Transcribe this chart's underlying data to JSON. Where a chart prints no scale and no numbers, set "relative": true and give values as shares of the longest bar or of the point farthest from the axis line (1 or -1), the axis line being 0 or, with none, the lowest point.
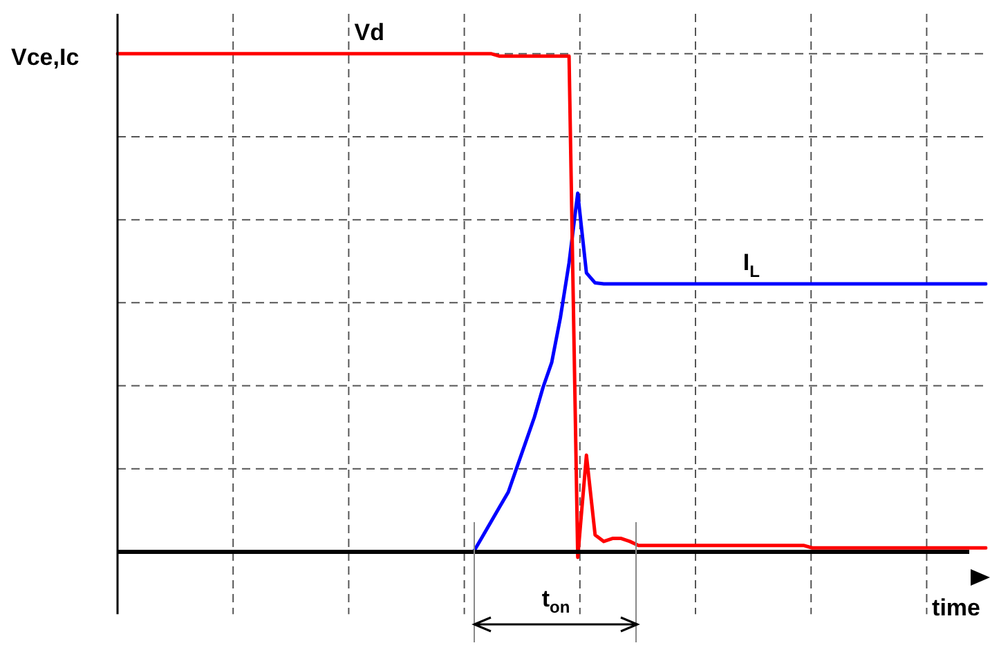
{
  "chart_data": {
    "type": "line",
    "relative": true,
    "ylabel": "Vce,Ic",
    "xlabel": "time",
    "grid": true,
    "line_style": "solid",
    "annotations": [
      "t$_{on}$"
    ],
    "categories": [
      null,
      null,
      null,
      null,
      null,
      null,
      null,
      null,
      null,
      null,
      null,
      null,
      null,
      null,
      null,
      null,
      null,
      null,
      null,
      null,
      null,
      null,
      null,
      null,
      null,
      null,
      null,
      null,
      null,
      null,
      null,
      null,
      null,
      null,
      null,
      null,
      null,
      null,
      null,
      null,
      null,
      null,
      null,
      null,
      null,
      null,
      null,
      null,
      null,
      null,
      null,
      null,
      null,
      null,
      null,
      null,
      null,
      null,
      null,
      null,
      null,
      null,
      null,
      null,
      null,
      null,
      null,
      null,
      null,
      null,
      null,
      null,
      null,
      null,
      null,
      null,
      null,
      null,
      null,
      null,
      null,
      null,
      null,
      null,
      null,
      null,
      null,
      null,
      null,
      null,
      null,
      null,
      null,
      null,
      null,
      null,
      null,
      null,
      null,
      null,
      null
    ],
    "series": [
      {
        "name": "Vd",
        "color": "#ff0000",
        "values": [
          1,
          1,
          1,
          1,
          1,
          1,
          1,
          1,
          1,
          1,
          1,
          1,
          1,
          1,
          1,
          1,
          1,
          1,
          1,
          1,
          1,
          1,
          1,
          1,
          1,
          1,
          1,
          1,
          1,
          1,
          1,
          1,
          1,
          1,
          1,
          1,
          1,
          1,
          1,
          1,
          1,
          1,
          1,
          1,
          0.995,
          0.995,
          0.995,
          0.995,
          0.995,
          0.995,
          0.995,
          0.995,
          0.995,
          -0.011,
          0.194,
          0.034,
          0.021,
          0.027,
          0.027,
          0.021,
          0.013,
          0.013,
          0.013,
          0.013,
          0.013,
          0.013,
          0.013,
          0.013,
          0.013,
          0.013,
          0.013,
          0.013,
          0.013,
          0.013,
          0.013,
          0.013,
          0.013,
          0.013,
          0.013,
          0.013,
          0.008,
          0.008,
          0.008,
          0.008,
          0.008,
          0.008,
          0.008,
          0.008,
          0.008,
          0.008,
          0.008,
          0.008,
          0.008,
          0.008,
          0.008,
          0.008,
          0.008,
          0.008,
          0.008,
          0.008,
          0.008
        ]
      },
      {
        "name": "I$_{L}$",
        "color": "#0000ff",
        "values": [
          null,
          null,
          null,
          null,
          null,
          null,
          null,
          null,
          null,
          null,
          null,
          null,
          null,
          null,
          null,
          null,
          null,
          null,
          null,
          null,
          null,
          null,
          null,
          null,
          null,
          null,
          null,
          null,
          null,
          null,
          null,
          null,
          null,
          null,
          null,
          null,
          null,
          null,
          null,
          null,
          null,
          0,
          0.03,
          0.06,
          0.09,
          0.12,
          0.17,
          0.22,
          0.27,
          0.33,
          0.38,
          0.47,
          0.58,
          0.72,
          0.56,
          0.54,
          0.538,
          0.538,
          0.538,
          0.538,
          0.538,
          0.538,
          0.538,
          0.538,
          0.538,
          0.538,
          0.538,
          0.538,
          0.538,
          0.538,
          0.538,
          0.538,
          0.538,
          0.538,
          0.538,
          0.538,
          0.538,
          0.538,
          0.538,
          0.538,
          0.538,
          0.538,
          0.538,
          0.538,
          0.538,
          0.538,
          0.538,
          0.538,
          0.538,
          0.538,
          0.538,
          0.538,
          0.538,
          0.538,
          0.538,
          0.538,
          0.538,
          0.538,
          0.538,
          0.538,
          0.538
        ]
      }
    ]
  }
}
